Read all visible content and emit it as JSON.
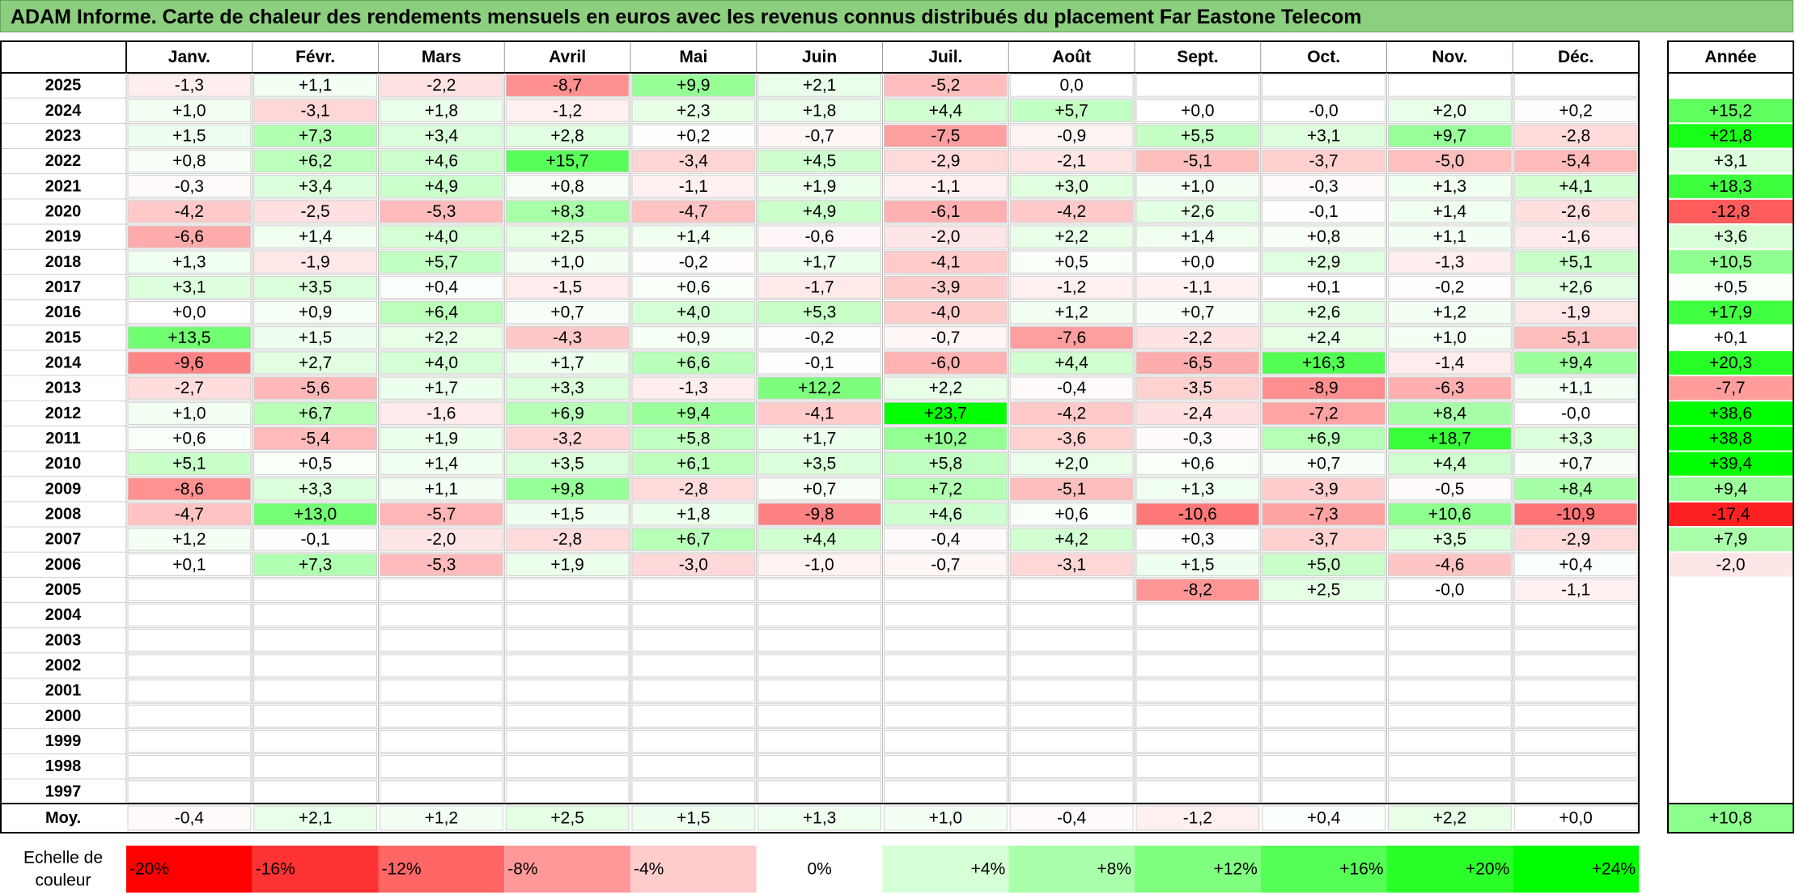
{
  "title": "ADAM Informe. Carte de chaleur des rendements mensuels en euros avec les revenus connus distribués du placement Far Eastone Telecom",
  "chart_data": {
    "type": "heatmap",
    "months": [
      "Janv.",
      "Févr.",
      "Mars",
      "Avril",
      "Mai",
      "Juin",
      "Juil.",
      "Août",
      "Sept.",
      "Oct.",
      "Nov.",
      "Déc."
    ],
    "annual_header": "Année",
    "rows": [
      {
        "year": "2025",
        "values": [
          "-1,3",
          "+1,1",
          "-2,2",
          "-8,7",
          "+9,9",
          "+2,1",
          "-5,2",
          "0,0",
          null,
          null,
          null,
          null
        ],
        "annual": null
      },
      {
        "year": "2024",
        "values": [
          "+1,0",
          "-3,1",
          "+1,8",
          "-1,2",
          "+2,3",
          "+1,8",
          "+4,4",
          "+5,7",
          "+0,0",
          "-0,0",
          "+2,0",
          "+0,2"
        ],
        "annual": "+15,2"
      },
      {
        "year": "2023",
        "values": [
          "+1,5",
          "+7,3",
          "+3,4",
          "+2,8",
          "+0,2",
          "-0,7",
          "-7,5",
          "-0,9",
          "+5,5",
          "+3,1",
          "+9,7",
          "-2,8"
        ],
        "annual": "+21,8"
      },
      {
        "year": "2022",
        "values": [
          "+0,8",
          "+6,2",
          "+4,6",
          "+15,7",
          "-3,4",
          "+4,5",
          "-2,9",
          "-2,1",
          "-5,1",
          "-3,7",
          "-5,0",
          "-5,4"
        ],
        "annual": "+3,1"
      },
      {
        "year": "2021",
        "values": [
          "-0,3",
          "+3,4",
          "+4,9",
          "+0,8",
          "-1,1",
          "+1,9",
          "-1,1",
          "+3,0",
          "+1,0",
          "-0,3",
          "+1,3",
          "+4,1"
        ],
        "annual": "+18,3"
      },
      {
        "year": "2020",
        "values": [
          "-4,2",
          "-2,5",
          "-5,3",
          "+8,3",
          "-4,7",
          "+4,9",
          "-6,1",
          "-4,2",
          "+2,6",
          "-0,1",
          "+1,4",
          "-2,6"
        ],
        "annual": "-12,8"
      },
      {
        "year": "2019",
        "values": [
          "-6,6",
          "+1,4",
          "+4,0",
          "+2,5",
          "+1,4",
          "-0,6",
          "-2,0",
          "+2,2",
          "+1,4",
          "+0,8",
          "+1,1",
          "-1,6"
        ],
        "annual": "+3,6"
      },
      {
        "year": "2018",
        "values": [
          "+1,3",
          "-1,9",
          "+5,7",
          "+1,0",
          "-0,2",
          "+1,7",
          "-4,1",
          "+0,5",
          "+0,0",
          "+2,9",
          "-1,3",
          "+5,1"
        ],
        "annual": "+10,5"
      },
      {
        "year": "2017",
        "values": [
          "+3,1",
          "+3,5",
          "+0,4",
          "-1,5",
          "+0,6",
          "-1,7",
          "-3,9",
          "-1,2",
          "-1,1",
          "+0,1",
          "-0,2",
          "+2,6"
        ],
        "annual": "+0,5"
      },
      {
        "year": "2016",
        "values": [
          "+0,0",
          "+0,9",
          "+6,4",
          "+0,7",
          "+4,0",
          "+5,3",
          "-4,0",
          "+1,2",
          "+0,7",
          "+2,6",
          "+1,2",
          "-1,9"
        ],
        "annual": "+17,9"
      },
      {
        "year": "2015",
        "values": [
          "+13,5",
          "+1,5",
          "+2,2",
          "-4,3",
          "+0,9",
          "-0,2",
          "-0,7",
          "-7,6",
          "-2,2",
          "+2,4",
          "+1,0",
          "-5,1"
        ],
        "annual": "+0,1"
      },
      {
        "year": "2014",
        "values": [
          "-9,6",
          "+2,7",
          "+4,0",
          "+1,7",
          "+6,6",
          "-0,1",
          "-6,0",
          "+4,4",
          "-6,5",
          "+16,3",
          "-1,4",
          "+9,4"
        ],
        "annual": "+20,3"
      },
      {
        "year": "2013",
        "values": [
          "-2,7",
          "-5,6",
          "+1,7",
          "+3,3",
          "-1,3",
          "+12,2",
          "+2,2",
          "-0,4",
          "-3,5",
          "-8,9",
          "-6,3",
          "+1,1"
        ],
        "annual": "-7,7"
      },
      {
        "year": "2012",
        "values": [
          "+1,0",
          "+6,7",
          "-1,6",
          "+6,9",
          "+9,4",
          "-4,1",
          "+23,7",
          "-4,2",
          "-2,4",
          "-7,2",
          "+8,4",
          "-0,0"
        ],
        "annual": "+38,6"
      },
      {
        "year": "2011",
        "values": [
          "+0,6",
          "-5,4",
          "+1,9",
          "-3,2",
          "+5,8",
          "+1,7",
          "+10,2",
          "-3,6",
          "-0,3",
          "+6,9",
          "+18,7",
          "+3,3"
        ],
        "annual": "+38,8"
      },
      {
        "year": "2010",
        "values": [
          "+5,1",
          "+0,5",
          "+1,4",
          "+3,5",
          "+6,1",
          "+3,5",
          "+5,8",
          "+2,0",
          "+0,6",
          "+0,7",
          "+4,4",
          "+0,7"
        ],
        "annual": "+39,4"
      },
      {
        "year": "2009",
        "values": [
          "-8,6",
          "+3,3",
          "+1,1",
          "+9,8",
          "-2,8",
          "+0,7",
          "+7,2",
          "-5,1",
          "+1,3",
          "-3,9",
          "-0,5",
          "+8,4"
        ],
        "annual": "+9,4"
      },
      {
        "year": "2008",
        "values": [
          "-4,7",
          "+13,0",
          "-5,7",
          "+1,5",
          "+1,8",
          "-9,8",
          "+4,6",
          "+0,6",
          "-10,6",
          "-7,3",
          "+10,6",
          "-10,9"
        ],
        "annual": "-17,4"
      },
      {
        "year": "2007",
        "values": [
          "+1,2",
          "-0,1",
          "-2,0",
          "-2,8",
          "+6,7",
          "+4,4",
          "-0,4",
          "+4,2",
          "+0,3",
          "-3,7",
          "+3,5",
          "-2,9"
        ],
        "annual": "+7,9"
      },
      {
        "year": "2006",
        "values": [
          "+0,1",
          "+7,3",
          "-5,3",
          "+1,9",
          "-3,0",
          "-1,0",
          "-0,7",
          "-3,1",
          "+1,5",
          "+5,0",
          "-4,6",
          "+0,4"
        ],
        "annual": "-2,0"
      },
      {
        "year": "2005",
        "values": [
          null,
          null,
          null,
          null,
          null,
          null,
          null,
          null,
          "-8,2",
          "+2,5",
          "-0,0",
          "-1,1"
        ],
        "annual": null
      },
      {
        "year": "2004",
        "values": [
          null,
          null,
          null,
          null,
          null,
          null,
          null,
          null,
          null,
          null,
          null,
          null
        ],
        "annual": null
      },
      {
        "year": "2003",
        "values": [
          null,
          null,
          null,
          null,
          null,
          null,
          null,
          null,
          null,
          null,
          null,
          null
        ],
        "annual": null
      },
      {
        "year": "2002",
        "values": [
          null,
          null,
          null,
          null,
          null,
          null,
          null,
          null,
          null,
          null,
          null,
          null
        ],
        "annual": null
      },
      {
        "year": "2001",
        "values": [
          null,
          null,
          null,
          null,
          null,
          null,
          null,
          null,
          null,
          null,
          null,
          null
        ],
        "annual": null
      },
      {
        "year": "2000",
        "values": [
          null,
          null,
          null,
          null,
          null,
          null,
          null,
          null,
          null,
          null,
          null,
          null
        ],
        "annual": null
      },
      {
        "year": "1999",
        "values": [
          null,
          null,
          null,
          null,
          null,
          null,
          null,
          null,
          null,
          null,
          null,
          null
        ],
        "annual": null
      },
      {
        "year": "1998",
        "values": [
          null,
          null,
          null,
          null,
          null,
          null,
          null,
          null,
          null,
          null,
          null,
          null
        ],
        "annual": null
      },
      {
        "year": "1997",
        "values": [
          null,
          null,
          null,
          null,
          null,
          null,
          null,
          null,
          null,
          null,
          null,
          null
        ],
        "annual": null
      }
    ],
    "average": {
      "label": "Moy.",
      "values": [
        "-0,4",
        "+2,1",
        "+1,2",
        "+2,5",
        "+1,5",
        "+1,3",
        "+1,0",
        "-0,4",
        "-1,2",
        "+0,4",
        "+2,2",
        "+0,0"
      ],
      "annual": "+10,8"
    },
    "scale": {
      "label_line1": "Echelle de",
      "label_line2": "couleur",
      "steps": [
        {
          "value": -20,
          "label": "-20%"
        },
        {
          "value": -16,
          "label": "-16%"
        },
        {
          "value": -12,
          "label": "-12%"
        },
        {
          "value": -8,
          "label": "-8%"
        },
        {
          "value": -4,
          "label": "-4%"
        },
        {
          "value": 0,
          "label": "0%"
        },
        {
          "value": 4,
          "label": "+4%"
        },
        {
          "value": 8,
          "label": "+8%"
        },
        {
          "value": 12,
          "label": "+12%"
        },
        {
          "value": 16,
          "label": "+16%"
        },
        {
          "value": 20,
          "label": "+20%"
        },
        {
          "value": 24,
          "label": "+24%"
        }
      ]
    },
    "colors": {
      "negative_max": "#ff0000",
      "zero": "#ffffff",
      "positive_max": "#00ff00",
      "title_bar": "#8ccf7e"
    }
  }
}
